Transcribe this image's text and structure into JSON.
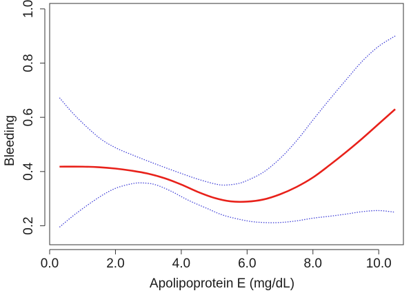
{
  "chart_data": {
    "type": "line",
    "title": "",
    "xlabel": "Apolipoprotein E (mg/dL)",
    "ylabel": "Bleeding",
    "xlim": [
      0.0,
      10.75
    ],
    "ylim": [
      0.13,
      1.02
    ],
    "x_ticks": [
      0.0,
      2.0,
      4.0,
      6.0,
      8.0,
      10.0
    ],
    "x_tick_labels": [
      "0.0",
      "2.0",
      "4.0",
      "6.0",
      "8.0",
      "10.0"
    ],
    "y_ticks": [
      0.2,
      0.4,
      0.6,
      0.8,
      1.0
    ],
    "y_tick_labels": [
      "0.2",
      "0.4",
      "0.6",
      "0.8",
      "1.0"
    ],
    "grid": false,
    "legend": "none",
    "series": [
      {
        "role": "estimate",
        "style": "solid",
        "color": "#e8211a",
        "points": [
          [
            0.3,
            0.418
          ],
          [
            1.0,
            0.418
          ],
          [
            1.5,
            0.416
          ],
          [
            2.0,
            0.411
          ],
          [
            2.5,
            0.403
          ],
          [
            3.0,
            0.392
          ],
          [
            3.5,
            0.375
          ],
          [
            4.0,
            0.352
          ],
          [
            4.5,
            0.325
          ],
          [
            5.0,
            0.303
          ],
          [
            5.5,
            0.29
          ],
          [
            6.0,
            0.289
          ],
          [
            6.5,
            0.297
          ],
          [
            7.0,
            0.316
          ],
          [
            7.5,
            0.343
          ],
          [
            8.0,
            0.378
          ],
          [
            8.5,
            0.423
          ],
          [
            9.0,
            0.471
          ],
          [
            9.5,
            0.522
          ],
          [
            10.0,
            0.576
          ],
          [
            10.5,
            0.63
          ]
        ]
      },
      {
        "role": "upper-ci",
        "style": "dotted",
        "color": "#3d3dd6",
        "points": [
          [
            0.3,
            0.672
          ],
          [
            0.8,
            0.603
          ],
          [
            1.5,
            0.525
          ],
          [
            2.0,
            0.488
          ],
          [
            2.5,
            0.462
          ],
          [
            3.0,
            0.438
          ],
          [
            3.5,
            0.415
          ],
          [
            4.0,
            0.393
          ],
          [
            4.5,
            0.372
          ],
          [
            5.0,
            0.355
          ],
          [
            5.3,
            0.35
          ],
          [
            5.7,
            0.355
          ],
          [
            6.0,
            0.367
          ],
          [
            6.5,
            0.398
          ],
          [
            7.0,
            0.448
          ],
          [
            7.5,
            0.513
          ],
          [
            8.0,
            0.59
          ],
          [
            8.5,
            0.665
          ],
          [
            9.0,
            0.737
          ],
          [
            9.5,
            0.807
          ],
          [
            10.0,
            0.862
          ],
          [
            10.5,
            0.9
          ]
        ]
      },
      {
        "role": "lower-ci",
        "style": "dotted",
        "color": "#3d3dd6",
        "points": [
          [
            0.3,
            0.195
          ],
          [
            0.8,
            0.245
          ],
          [
            1.5,
            0.305
          ],
          [
            2.0,
            0.338
          ],
          [
            2.5,
            0.355
          ],
          [
            2.8,
            0.358
          ],
          [
            3.2,
            0.352
          ],
          [
            3.7,
            0.327
          ],
          [
            4.2,
            0.295
          ],
          [
            4.8,
            0.263
          ],
          [
            5.3,
            0.238
          ],
          [
            6.0,
            0.218
          ],
          [
            6.5,
            0.212
          ],
          [
            7.0,
            0.212
          ],
          [
            7.5,
            0.218
          ],
          [
            8.0,
            0.228
          ],
          [
            8.5,
            0.235
          ],
          [
            9.0,
            0.243
          ],
          [
            9.5,
            0.252
          ],
          [
            10.0,
            0.256
          ],
          [
            10.5,
            0.25
          ]
        ]
      }
    ]
  }
}
